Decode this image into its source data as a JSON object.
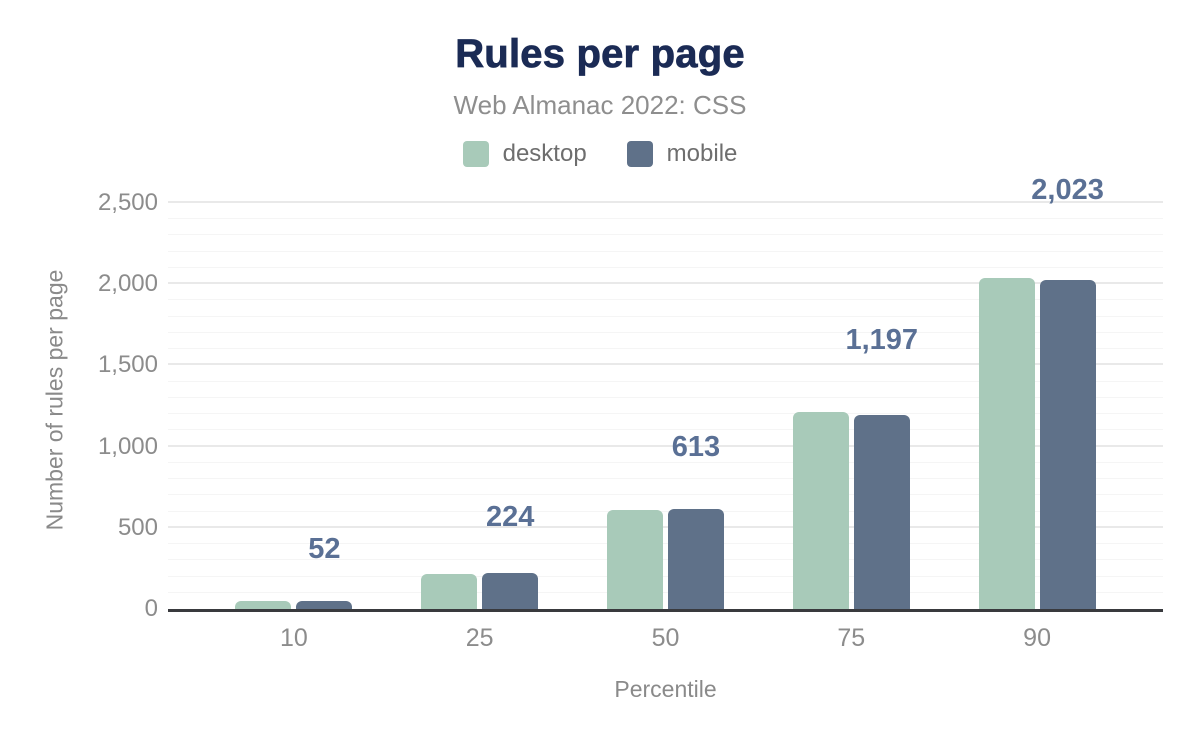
{
  "colors": {
    "desktop": "#a8cab9",
    "mobile": "#5f7189",
    "title_text": "#1b2b55",
    "subtitle_text": "#8e8e8e",
    "axis_text": "#8c8c8c",
    "value_label_text": "#5a7095",
    "axis_line": "#393a3e",
    "grid_major": "#e9e9e9",
    "grid_minor": "#f5f5f5"
  },
  "chart_data": {
    "type": "bar",
    "title": "Rules per page",
    "subtitle": "Web Almanac 2022: CSS",
    "xlabel": "Percentile",
    "ylabel": "Number of rules per page",
    "categories": [
      "10",
      "25",
      "50",
      "75",
      "90"
    ],
    "series": [
      {
        "name": "desktop",
        "values": [
          49,
          214,
          609,
          1211,
          2037
        ]
      },
      {
        "name": "mobile",
        "values": [
          52,
          224,
          613,
          1197,
          2023
        ]
      }
    ],
    "value_labels": {
      "series": "mobile",
      "values": [
        "52",
        "224",
        "613",
        "1,197",
        "2,023"
      ]
    },
    "ylim": [
      0,
      2500
    ],
    "ytick_step_major": 500,
    "ytick_step_minor": 100,
    "yticks": [
      "0",
      "500",
      "1,000",
      "1,500",
      "2,000",
      "2,500"
    ],
    "grid": true,
    "legend_position": "top"
  }
}
